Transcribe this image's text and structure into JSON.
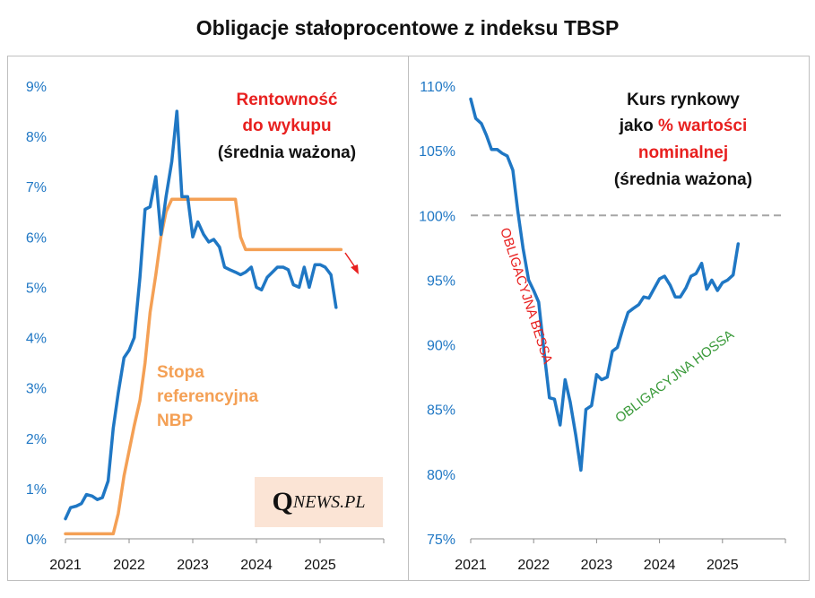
{
  "title": "Obligacje stałoprocentowe z indeksu TBSP",
  "logo": "QNEWS.PL",
  "colors": {
    "blue": "#1f77c4",
    "orange": "#f4a055",
    "red": "#e8201f",
    "green": "#3a9a3a",
    "tick": "#1f77c4",
    "gray": "#a6a6a6"
  },
  "chart_data": [
    {
      "type": "line",
      "x_ticks": [
        "2021",
        "2022",
        "2023",
        "2024",
        "2025"
      ],
      "y_ticks": [
        "0%",
        "1%",
        "2%",
        "3%",
        "4%",
        "5%",
        "6%",
        "7%",
        "8%",
        "9%"
      ],
      "ylim": [
        0,
        9
      ],
      "xlim": [
        2021,
        2026
      ],
      "annotation": {
        "line1": "Rentowność",
        "line2": "do wykupu",
        "line3": "(średnia ważona)"
      },
      "series": [
        {
          "name": "Rentowność do wykupu (średnia ważona)",
          "color": "#1f77c4",
          "points": [
            [
              2021.0,
              0.4
            ],
            [
              2021.08,
              0.62
            ],
            [
              2021.17,
              0.65
            ],
            [
              2021.25,
              0.7
            ],
            [
              2021.33,
              0.88
            ],
            [
              2021.42,
              0.85
            ],
            [
              2021.5,
              0.78
            ],
            [
              2021.58,
              0.82
            ],
            [
              2021.67,
              1.15
            ],
            [
              2021.75,
              2.2
            ],
            [
              2021.83,
              2.9
            ],
            [
              2021.92,
              3.6
            ],
            [
              2022.0,
              3.75
            ],
            [
              2022.08,
              4.0
            ],
            [
              2022.17,
              5.2
            ],
            [
              2022.25,
              6.55
            ],
            [
              2022.33,
              6.6
            ],
            [
              2022.42,
              7.2
            ],
            [
              2022.5,
              6.05
            ],
            [
              2022.58,
              6.8
            ],
            [
              2022.67,
              7.5
            ],
            [
              2022.75,
              8.5
            ],
            [
              2022.83,
              6.8
            ],
            [
              2022.92,
              6.8
            ],
            [
              2023.0,
              6.0
            ],
            [
              2023.08,
              6.3
            ],
            [
              2023.17,
              6.05
            ],
            [
              2023.25,
              5.9
            ],
            [
              2023.33,
              5.95
            ],
            [
              2023.42,
              5.8
            ],
            [
              2023.5,
              5.4
            ],
            [
              2023.58,
              5.35
            ],
            [
              2023.67,
              5.3
            ],
            [
              2023.75,
              5.25
            ],
            [
              2023.83,
              5.3
            ],
            [
              2023.92,
              5.4
            ],
            [
              2024.0,
              5.0
            ],
            [
              2024.08,
              4.95
            ],
            [
              2024.17,
              5.2
            ],
            [
              2024.25,
              5.3
            ],
            [
              2024.33,
              5.4
            ],
            [
              2024.42,
              5.4
            ],
            [
              2024.5,
              5.35
            ],
            [
              2024.58,
              5.05
            ],
            [
              2024.67,
              5.0
            ],
            [
              2024.75,
              5.4
            ],
            [
              2024.83,
              5.0
            ],
            [
              2024.92,
              5.45
            ],
            [
              2025.0,
              5.45
            ],
            [
              2025.08,
              5.4
            ],
            [
              2025.17,
              5.25
            ],
            [
              2025.25,
              4.6
            ]
          ]
        },
        {
          "name": "Stopa referencyjna NBP",
          "color": "#f4a055",
          "label_lines": [
            "Stopa",
            "referencyjna",
            "NBP"
          ],
          "points": [
            [
              2021.0,
              0.1
            ],
            [
              2021.75,
              0.1
            ],
            [
              2021.83,
              0.5
            ],
            [
              2021.92,
              1.25
            ],
            [
              2022.0,
              1.75
            ],
            [
              2022.08,
              2.25
            ],
            [
              2022.17,
              2.75
            ],
            [
              2022.25,
              3.5
            ],
            [
              2022.33,
              4.5
            ],
            [
              2022.42,
              5.25
            ],
            [
              2022.5,
              6.0
            ],
            [
              2022.58,
              6.5
            ],
            [
              2022.67,
              6.75
            ],
            [
              2023.67,
              6.75
            ],
            [
              2023.75,
              6.0
            ],
            [
              2023.83,
              5.75
            ],
            [
              2025.33,
              5.75
            ]
          ]
        }
      ],
      "arrow_color": "#e8201f"
    },
    {
      "type": "line",
      "x_ticks": [
        "2021",
        "2022",
        "2023",
        "2024",
        "2025"
      ],
      "y_ticks": [
        "75%",
        "80%",
        "85%",
        "90%",
        "95%",
        "100%",
        "105%",
        "110%"
      ],
      "ylim": [
        75,
        110
      ],
      "xlim": [
        2021,
        2026
      ],
      "reference_line": 100,
      "annotation": {
        "line1": "Kurs rynkowy",
        "line2a": "jako ",
        "line2b": "% wartości",
        "line3": "nominalnej",
        "line4": "(średnia ważona)"
      },
      "bessa_label": "OBLIGACYJNA BESSA",
      "hossa_label": "OBLIGACYJNA HOSSA",
      "series": [
        {
          "name": "Kurs rynkowy jako % wartości nominalnej (średnia ważona)",
          "color": "#1f77c4",
          "points": [
            [
              2021.0,
              109.0
            ],
            [
              2021.08,
              107.5
            ],
            [
              2021.17,
              107.1
            ],
            [
              2021.25,
              106.2
            ],
            [
              2021.33,
              105.1
            ],
            [
              2021.42,
              105.1
            ],
            [
              2021.5,
              104.8
            ],
            [
              2021.58,
              104.6
            ],
            [
              2021.67,
              103.5
            ],
            [
              2021.75,
              100.3
            ],
            [
              2021.83,
              97.5
            ],
            [
              2021.92,
              95.0
            ],
            [
              2022.0,
              94.2
            ],
            [
              2022.08,
              93.3
            ],
            [
              2022.17,
              89.3
            ],
            [
              2022.25,
              85.9
            ],
            [
              2022.33,
              85.8
            ],
            [
              2022.42,
              83.8
            ],
            [
              2022.5,
              87.3
            ],
            [
              2022.58,
              85.6
            ],
            [
              2022.67,
              83.0
            ],
            [
              2022.75,
              80.3
            ],
            [
              2022.83,
              85.0
            ],
            [
              2022.92,
              85.3
            ],
            [
              2023.0,
              87.7
            ],
            [
              2023.08,
              87.3
            ],
            [
              2023.17,
              87.5
            ],
            [
              2023.25,
              89.5
            ],
            [
              2023.33,
              89.8
            ],
            [
              2023.42,
              91.3
            ],
            [
              2023.5,
              92.5
            ],
            [
              2023.58,
              92.8
            ],
            [
              2023.67,
              93.1
            ],
            [
              2023.75,
              93.7
            ],
            [
              2023.83,
              93.6
            ],
            [
              2023.92,
              94.4
            ],
            [
              2024.0,
              95.1
            ],
            [
              2024.08,
              95.3
            ],
            [
              2024.17,
              94.6
            ],
            [
              2024.25,
              93.7
            ],
            [
              2024.33,
              93.7
            ],
            [
              2024.42,
              94.4
            ],
            [
              2024.5,
              95.3
            ],
            [
              2024.58,
              95.5
            ],
            [
              2024.67,
              96.3
            ],
            [
              2024.75,
              94.3
            ],
            [
              2024.83,
              95.0
            ],
            [
              2024.92,
              94.2
            ],
            [
              2025.0,
              94.8
            ],
            [
              2025.08,
              95.0
            ],
            [
              2025.17,
              95.4
            ],
            [
              2025.25,
              97.8
            ]
          ]
        }
      ]
    }
  ]
}
